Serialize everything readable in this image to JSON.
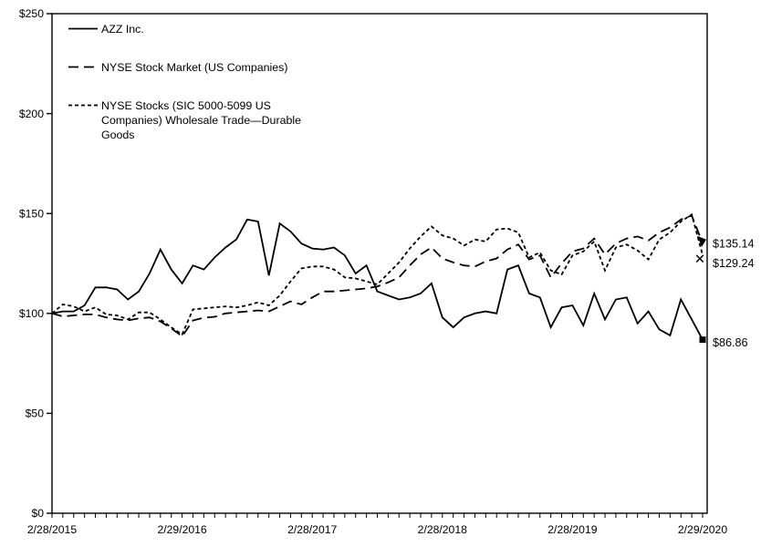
{
  "chart_data": {
    "type": "line",
    "title": "",
    "xlabel": "",
    "ylabel": "",
    "n_points": 61,
    "x_unit": "month",
    "x_tick_positions": [
      0,
      12,
      24,
      36,
      48,
      60
    ],
    "x_tick_labels": [
      "2/28/2015",
      "2/29/2016",
      "2/28/2017",
      "2/28/2018",
      "2/28/2019",
      "2/29/2020"
    ],
    "ylim": [
      0,
      250
    ],
    "y_ticks": [
      0,
      50,
      100,
      150,
      200,
      250
    ],
    "y_tick_labels": [
      "$0",
      "$50",
      "$100",
      "$150",
      "$200",
      "$250"
    ],
    "grid": false,
    "legend_position": "top-left-inside",
    "colors": {
      "line": "#000000",
      "background": "#ffffff",
      "text": "#000000"
    },
    "series": [
      {
        "name": "AZZ Inc.",
        "legend_lines": [
          "AZZ Inc."
        ],
        "dash": "solid",
        "end_marker": "square",
        "end_label": "$86.86",
        "end_value": 86.86,
        "values": [
          100,
          101,
          101,
          104,
          113,
          113,
          112,
          107,
          111,
          120,
          132,
          122,
          115,
          124,
          122,
          128,
          133,
          137,
          147,
          146,
          119,
          145,
          141,
          135,
          132.5,
          132,
          133,
          129,
          120,
          124,
          111,
          109,
          107,
          108,
          110,
          115,
          98,
          93,
          98,
          100,
          101,
          100,
          122,
          124,
          110,
          108,
          93,
          103,
          104,
          94,
          110,
          97,
          107,
          108,
          95,
          101,
          92,
          89,
          107,
          97,
          86.86
        ]
      },
      {
        "name": "NYSE Stock Market (US Companies)",
        "legend_lines": [
          "NYSE Stock Market (US Companies)"
        ],
        "dash": "long-dash",
        "end_marker": "triangle",
        "end_label": "$135.14",
        "end_value": 135.14,
        "values": [
          100,
          98.5,
          99,
          99.5,
          99.5,
          98,
          97,
          96.5,
          97.5,
          98,
          96,
          92.5,
          88.5,
          96.5,
          97.8,
          98.3,
          100,
          100.5,
          101,
          101.5,
          101,
          103.5,
          106,
          104.5,
          108,
          111,
          111,
          111.5,
          112,
          112.5,
          113.5,
          115.5,
          118,
          124,
          129.5,
          133,
          127.5,
          125.5,
          124,
          123.5,
          126,
          127.5,
          132,
          134.5,
          127,
          129,
          118,
          125,
          131,
          132.5,
          137.5,
          129.5,
          135,
          137.5,
          138.5,
          136.5,
          140.5,
          143,
          147,
          149,
          135.14
        ]
      },
      {
        "name": "NYSE Stocks (SIC 5000-5099 US Companies) Wholesale Trade—Durable Goods",
        "legend_lines": [
          "NYSE Stocks (SIC 5000-5099 US",
          "Companies) Wholesale Trade—Durable",
          "Goods"
        ],
        "dash": "short-dash",
        "end_marker": "x",
        "end_label": "$129.24",
        "end_value": 129.24,
        "values": [
          100,
          104.5,
          103.5,
          101,
          103,
          99.5,
          99,
          97,
          100.5,
          100.5,
          97,
          93,
          89.5,
          102,
          102.5,
          103,
          103.5,
          103,
          104,
          105.5,
          104,
          109,
          116,
          122.5,
          123.5,
          123.5,
          122,
          118,
          117.5,
          116,
          114.5,
          120,
          125.5,
          132.5,
          138.5,
          143.5,
          139,
          137.5,
          134,
          137,
          136,
          142,
          142.5,
          140.5,
          128,
          130.5,
          121.5,
          119.5,
          129,
          131,
          136,
          121.5,
          133,
          134.5,
          131.5,
          127,
          137,
          140.5,
          146,
          149.5,
          129.24
        ]
      }
    ]
  }
}
